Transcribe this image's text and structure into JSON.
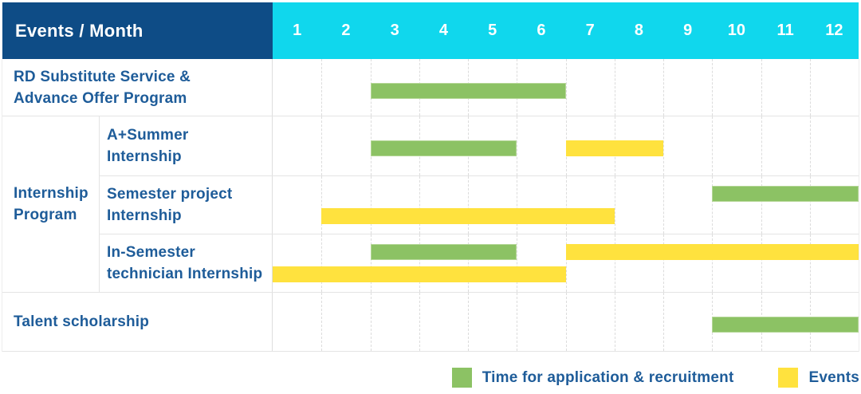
{
  "palette": {
    "header-navy": "#0E4C86",
    "header-cyan": "#10D7ED",
    "bar-green": "#8CC264",
    "bar-yellow": "#FFE23E",
    "label-blue": "#1E5C99"
  },
  "chart_data": {
    "type": "bar",
    "subtype": "gantt",
    "title": "Events / Month",
    "x_axis": {
      "label": "Month",
      "ticks": [
        "1",
        "2",
        "3",
        "4",
        "5",
        "6",
        "7",
        "8",
        "9",
        "10",
        "11",
        "12"
      ],
      "range": [
        1,
        12
      ]
    },
    "months": [
      "1",
      "2",
      "3",
      "4",
      "5",
      "6",
      "7",
      "8",
      "9",
      "10",
      "11",
      "12"
    ],
    "legend_position": "bottom-right",
    "series_legend": [
      {
        "key": "green",
        "name": "Time for application & recruitment",
        "color": "#8CC264"
      },
      {
        "key": "yellow",
        "name": "Events",
        "color": "#FFE23E"
      }
    ],
    "row_groups": [
      {
        "label": "Internship Program",
        "label_lines": [
          "Internship",
          "Program"
        ],
        "row_indexes": [
          1,
          2,
          3
        ]
      }
    ],
    "rows": [
      {
        "label": "RD Substitute Service & Advance Offer Program",
        "label_lines": [
          "RD Substitute Service &",
          "Advance Offer Program"
        ],
        "group": null,
        "bars": [
          {
            "series": "Time for application & recruitment",
            "color_key": "green",
            "start_month": 3,
            "end_month": 6,
            "lane": "middle"
          }
        ]
      },
      {
        "label": "A+Summer Internship",
        "label_lines": [
          "A+Summer",
          "Internship"
        ],
        "group": "Internship Program",
        "bars": [
          {
            "series": "Time for application & recruitment",
            "color_key": "green",
            "start_month": 3,
            "end_month": 5,
            "lane": "middle"
          },
          {
            "series": "Events",
            "color_key": "yellow",
            "start_month": 7,
            "end_month": 8,
            "lane": "middle"
          }
        ]
      },
      {
        "label": "Semester project Internship",
        "label_lines": [
          "Semester project",
          "Internship"
        ],
        "group": "Internship Program",
        "bars": [
          {
            "series": "Time for application & recruitment",
            "color_key": "green",
            "start_month": 10,
            "end_month": 12,
            "lane": "upper"
          },
          {
            "series": "Events",
            "color_key": "yellow",
            "start_month": 2,
            "end_month": 7,
            "lane": "lower"
          }
        ]
      },
      {
        "label": "In-Semester technician Internship",
        "label_lines": [
          "In-Semester",
          "technician Internship"
        ],
        "group": "Internship Program",
        "bars": [
          {
            "series": "Time for application & recruitment",
            "color_key": "green",
            "start_month": 3,
            "end_month": 5,
            "lane": "upper"
          },
          {
            "series": "Events",
            "color_key": "yellow",
            "start_month": 7,
            "end_month": 12,
            "lane": "upper"
          },
          {
            "series": "Events",
            "color_key": "yellow",
            "start_month": 1,
            "end_month": 6,
            "lane": "lower"
          }
        ]
      },
      {
        "label": "Talent scholarship",
        "label_lines": [
          "Talent scholarship"
        ],
        "group": null,
        "bars": [
          {
            "series": "Time for application & recruitment",
            "color_key": "green",
            "start_month": 10,
            "end_month": 12,
            "lane": "middle"
          }
        ]
      }
    ]
  }
}
